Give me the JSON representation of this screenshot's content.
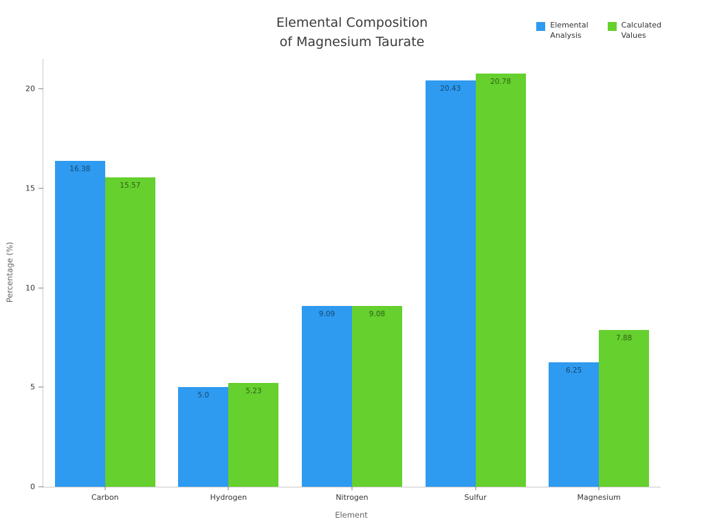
{
  "title": "Elemental Composition\nof Magnesium Taurate",
  "axes": {
    "x_label": "Element",
    "y_label": "Percentage (%)"
  },
  "chart_data": {
    "type": "bar",
    "title": "Elemental Composition of Magnesium Taurate",
    "xlabel": "Element",
    "ylabel": "Percentage (%)",
    "categories": [
      "Carbon",
      "Hydrogen",
      "Nitrogen",
      "Sulfur",
      "Magnesium"
    ],
    "series": [
      {
        "name": "Elemental Analysis",
        "legend_label": "Elemental\nAnalysis",
        "color": "#2E9AF0",
        "values": [
          16.38,
          5.0,
          9.09,
          20.43,
          6.25
        ],
        "labels": [
          "16.38",
          "5.0",
          "9.09",
          "20.43",
          "6.25"
        ]
      },
      {
        "name": "Calculated Values",
        "legend_label": "Calculated\nValues",
        "color": "#65D02E",
        "values": [
          15.57,
          5.23,
          9.08,
          20.78,
          7.88
        ],
        "labels": [
          "15.57",
          "5.23",
          "9.08",
          "20.78",
          "7.88"
        ]
      }
    ],
    "ylim": [
      0,
      21.5
    ],
    "yticks": [
      0,
      5,
      10,
      15,
      20
    ],
    "grid": false,
    "legend_position": "top-right"
  }
}
